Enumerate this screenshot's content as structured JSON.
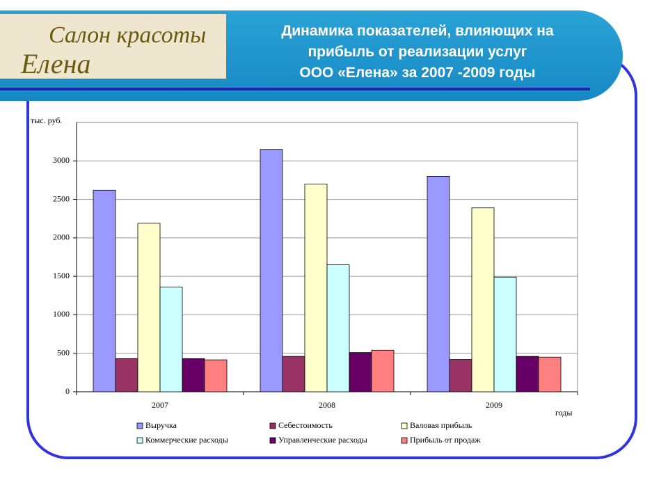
{
  "header": {
    "logo_line1": "Салон красоты",
    "logo_line2": "Елена"
  },
  "chart_data": {
    "type": "bar",
    "title": "Динамика показателей, влияющих на\nприбыль от реализации услуг\nООО «Елена» за 2007 -2009 годы",
    "y_label": "тыс. руб.",
    "x_label": "годы",
    "categories": [
      "2007",
      "2008",
      "2009"
    ],
    "series": [
      {
        "name": "Выручка",
        "color": "#9999ff",
        "values": [
          2620,
          3150,
          2800
        ]
      },
      {
        "name": "Себестоимость",
        "color": "#993366",
        "values": [
          430,
          460,
          420
        ]
      },
      {
        "name": "Валовая прибыль",
        "color": "#ffffcc",
        "values": [
          2190,
          2700,
          2390
        ]
      },
      {
        "name": "Коммерческие расходы",
        "color": "#ccffff",
        "values": [
          1360,
          1650,
          1490
        ]
      },
      {
        "name": "Управленческие расходы",
        "color": "#660066",
        "values": [
          430,
          510,
          460
        ]
      },
      {
        "name": "Прибыль от продаж",
        "color": "#ff8080",
        "values": [
          415,
          540,
          450
        ]
      }
    ],
    "ylim": [
      0,
      3500
    ],
    "yticks": [
      0,
      500,
      1000,
      1500,
      2000,
      2500,
      3000
    ],
    "grid": true
  }
}
